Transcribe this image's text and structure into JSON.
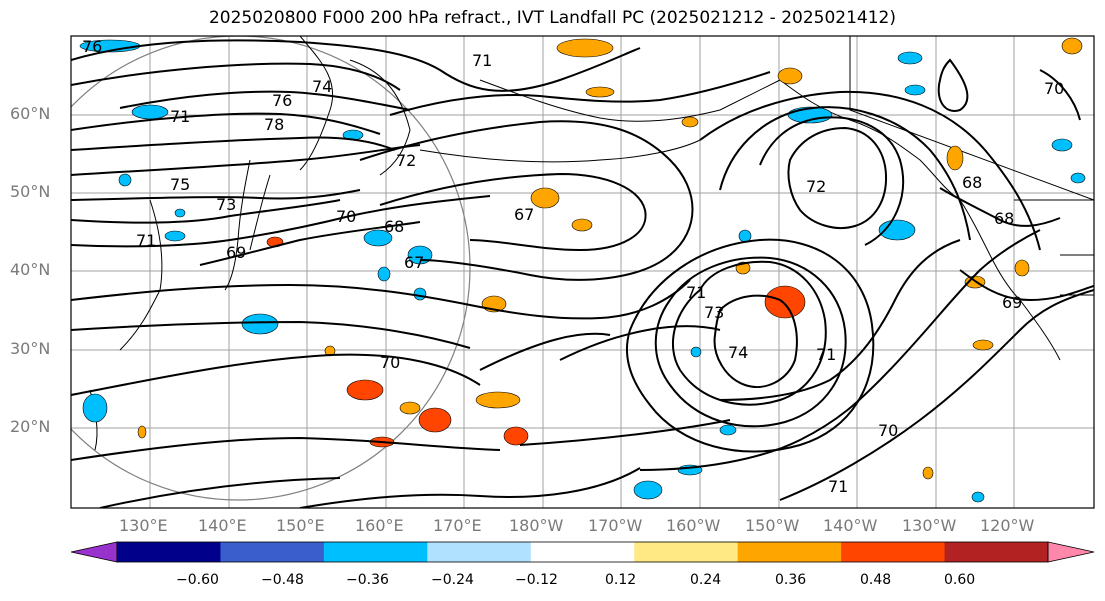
{
  "title": "2025020800 F000 200 hPa refract., IVT Landfall PC (2025021212 - 2025021412)",
  "lat_labels": [
    "60°N",
    "50°N",
    "40°N",
    "30°N",
    "20°N"
  ],
  "lon_labels": [
    "130°E",
    "140°E",
    "150°E",
    "160°E",
    "170°E",
    "180°W",
    "170°W",
    "160°W",
    "150°W",
    "140°W",
    "130°W",
    "120°W"
  ],
  "contour_labels": [
    "76",
    "71",
    "74",
    "76",
    "78",
    "71",
    "72",
    "75",
    "73",
    "70",
    "71",
    "69",
    "68",
    "67",
    "67",
    "72",
    "68",
    "68",
    "70",
    "69",
    "71",
    "73",
    "74",
    "71",
    "70",
    "70",
    "71"
  ],
  "colorbar": {
    "colors": [
      "#9932cc",
      "#00008b",
      "#3a5fcd",
      "#00bfff",
      "#b0e2ff",
      "#ffffff",
      "#ffe985",
      "#ffa500",
      "#ff4500",
      "#b22222",
      "#ff88aa"
    ],
    "ticks": [
      "−0.60",
      "−0.48",
      "−0.36",
      "−0.24",
      "−0.12",
      "0.12",
      "0.24",
      "0.36",
      "0.48",
      "0.60"
    ]
  },
  "colors": {
    "frame": "#000000",
    "grid": "#a0a0a0",
    "contour": "#000000",
    "range_circle": "#808080"
  }
}
